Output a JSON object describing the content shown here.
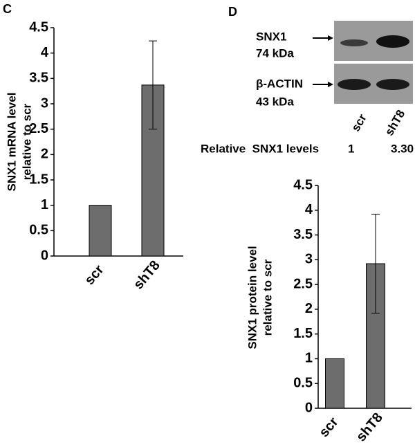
{
  "panel_labels": [
    "C",
    "D"
  ],
  "blot": {
    "bands": [
      {
        "name": "SNX1",
        "size": "74 kDa"
      },
      {
        "name": "β-ACTIN",
        "size": "43 kDa"
      }
    ],
    "lanes": [
      "scr",
      "shT8"
    ],
    "relative_label": "Relative  SNX1 levels",
    "relative_values": [
      "1",
      "3.30"
    ]
  },
  "chart_data": [
    {
      "type": "bar",
      "ylabel": [
        "SNX1 mRNA level",
        "relative to scr"
      ],
      "categories": [
        "scr",
        "shT8"
      ],
      "values": [
        1,
        3.37
      ],
      "errors": [
        null,
        0.87
      ],
      "color": "#6d6d6d",
      "ylim": [
        0,
        4.5
      ],
      "yticks": [
        0,
        0.5,
        1,
        1.5,
        2,
        2.5,
        3,
        3.5,
        4,
        4.5
      ]
    },
    {
      "type": "bar",
      "ylabel": [
        "SNX1 protein level",
        "relative to scr"
      ],
      "categories": [
        "scr",
        "shT8"
      ],
      "values": [
        1,
        2.92
      ],
      "errors": [
        null,
        1.0
      ],
      "color": "#6d6d6d",
      "ylim": [
        0,
        4.5
      ],
      "yticks": [
        0,
        0.5,
        1,
        1.5,
        2,
        2.5,
        3,
        3.5,
        4,
        4.5
      ]
    }
  ]
}
